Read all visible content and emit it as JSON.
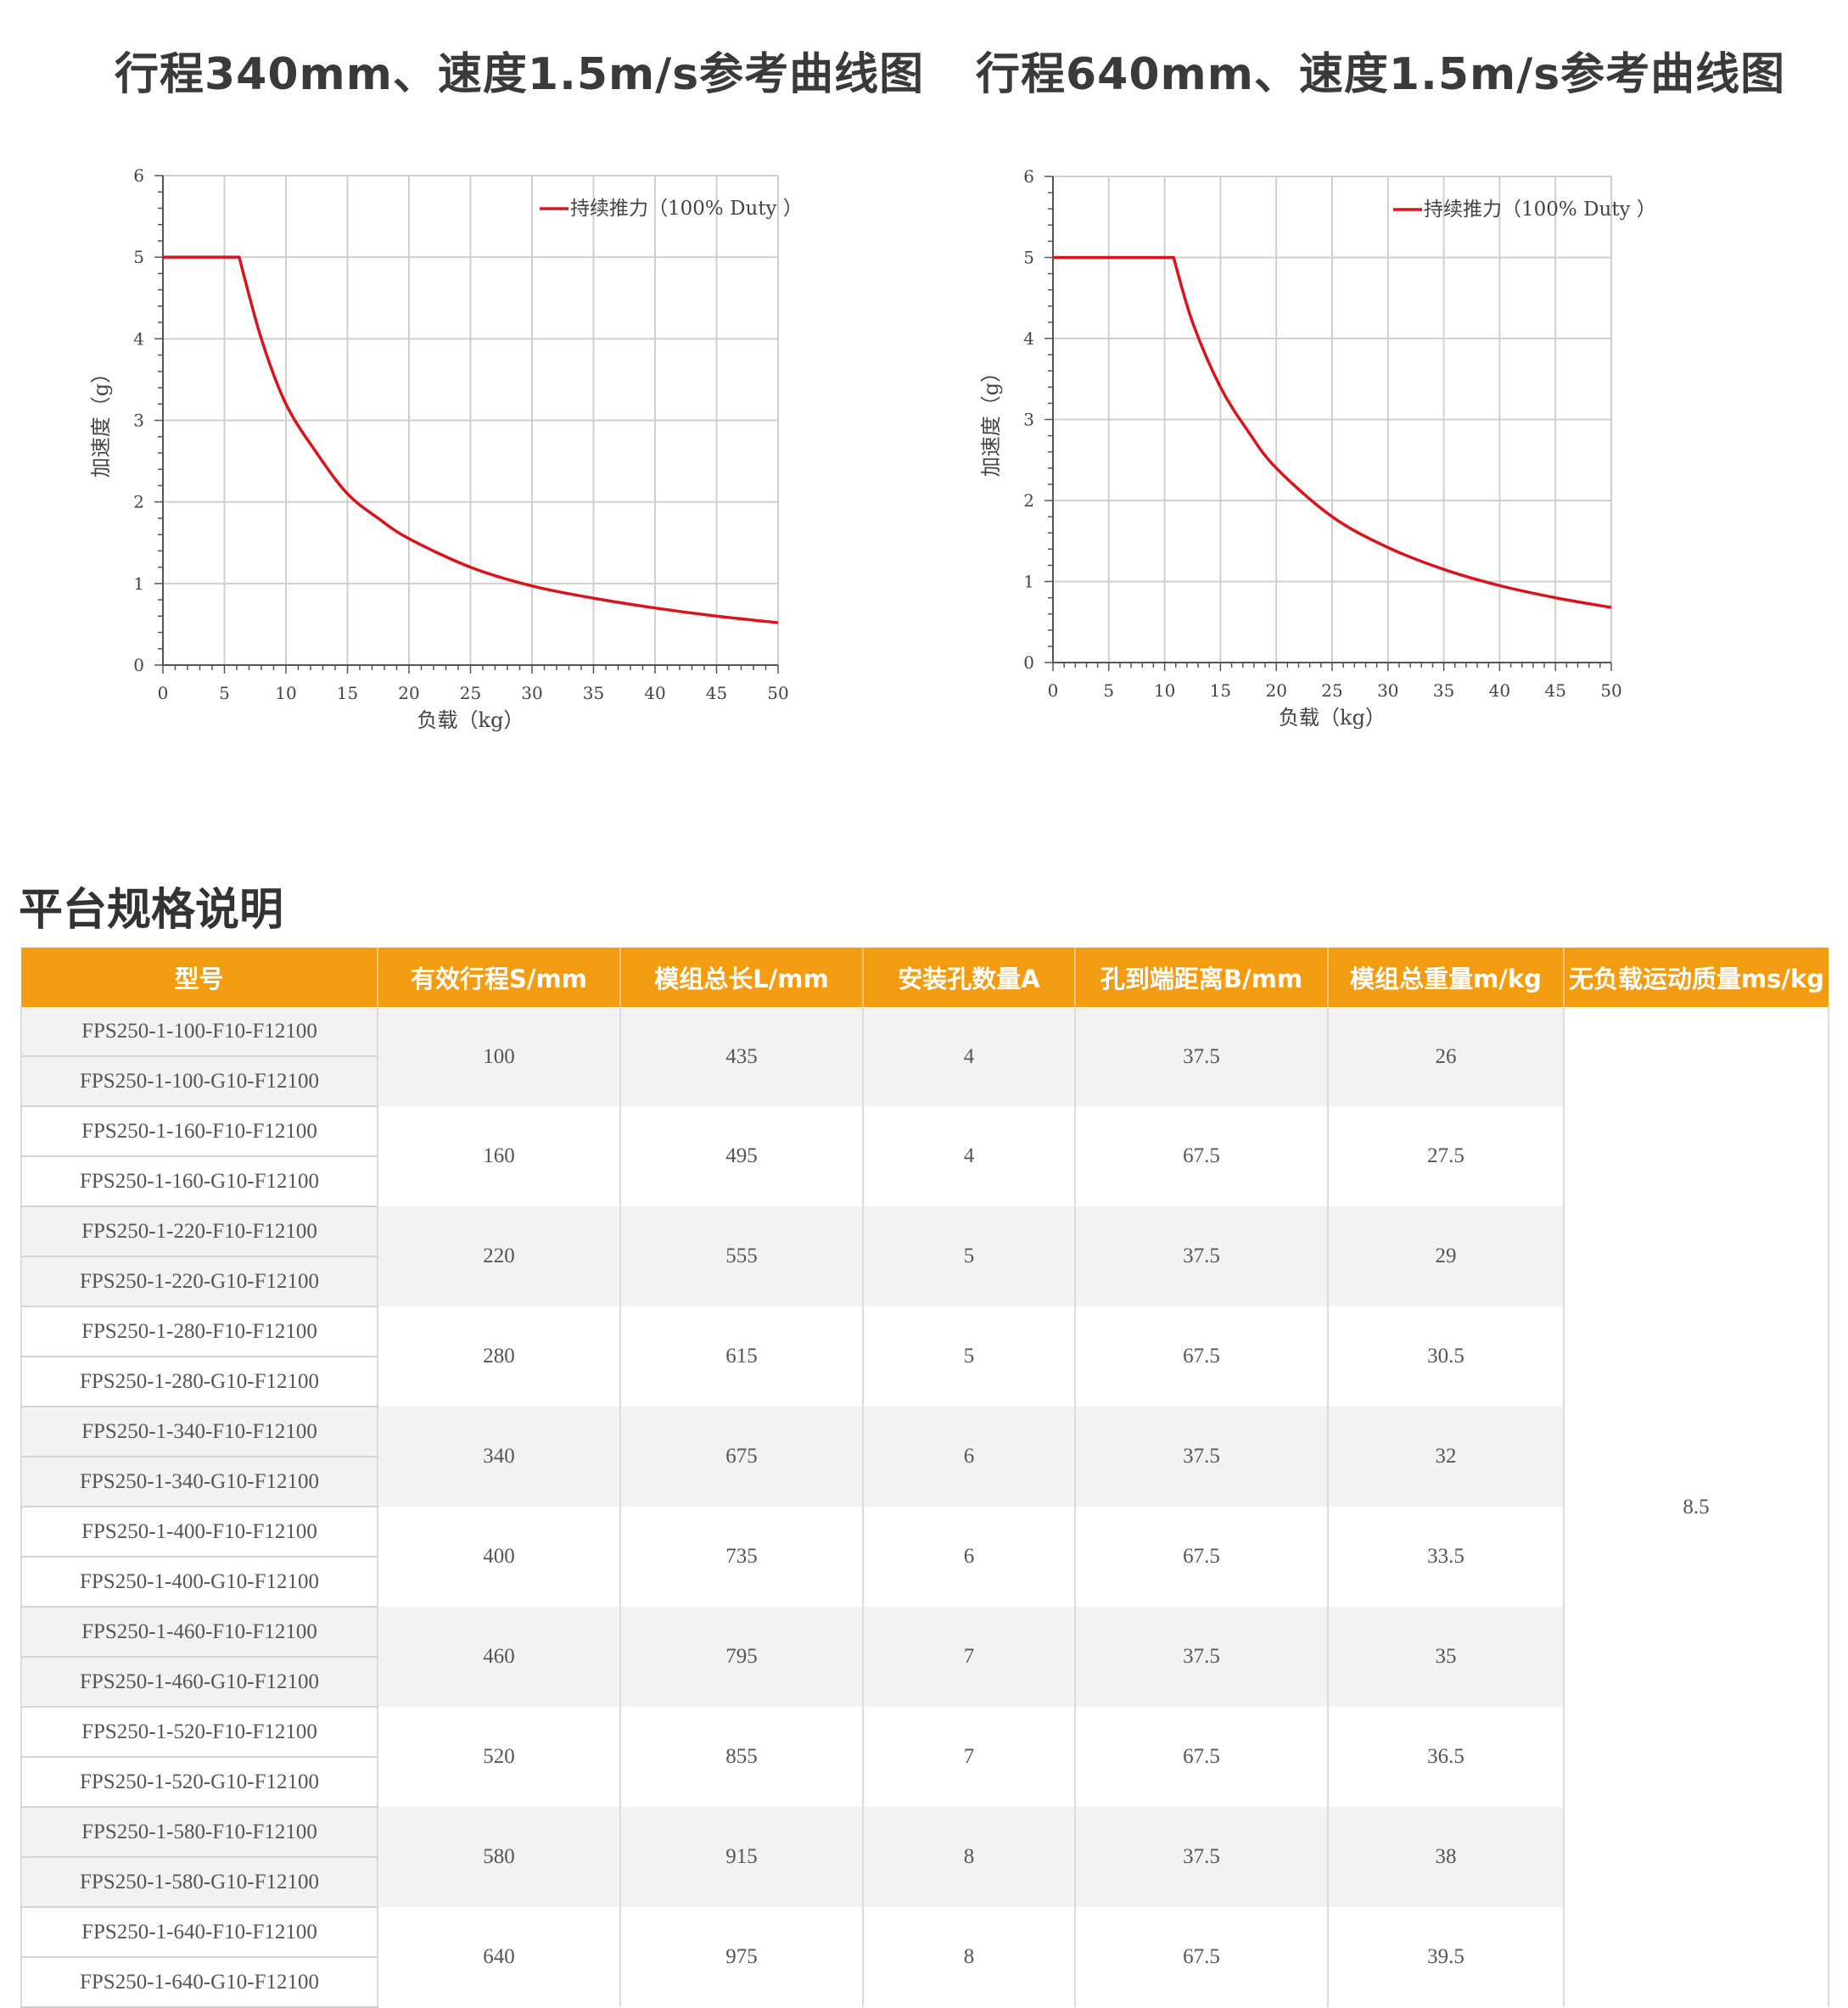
{
  "charts": [
    {
      "title": "行程340mm、速度1.5m/s参考曲线图",
      "legend": "持续推力（100% Duty ）",
      "xlabel": "负载（kg）",
      "ylabel": "加速度（g）",
      "x_ticks": [
        "0",
        "5",
        "10",
        "15",
        "20",
        "25",
        "30",
        "35",
        "40",
        "45",
        "50"
      ],
      "y_ticks": [
        "0",
        "1",
        "2",
        "3",
        "4",
        "5",
        "6"
      ]
    },
    {
      "title": "行程640mm、速度1.5m/s参考曲线图",
      "legend": "持续推力（100% Duty ）",
      "xlabel": "负载（kg）",
      "ylabel": "加速度（g）",
      "x_ticks": [
        "0",
        "5",
        "10",
        "15",
        "20",
        "25",
        "30",
        "35",
        "40",
        "45",
        "50"
      ],
      "y_ticks": [
        "0",
        "1",
        "2",
        "3",
        "4",
        "5",
        "6"
      ]
    }
  ],
  "chart_data": [
    {
      "type": "line",
      "title": "行程340mm、速度1.5m/s参考曲线图",
      "xlabel": "负载（kg）",
      "ylabel": "加速度（g）",
      "xlim": [
        0,
        50
      ],
      "ylim": [
        0,
        6
      ],
      "grid": true,
      "legend_position": "top-right",
      "color": "#d9151b",
      "series": [
        {
          "name": "持续推力（100% Duty ）",
          "x": [
            0,
            6.2,
            8,
            10,
            12.5,
            15,
            17.5,
            20,
            25,
            30,
            35,
            40,
            45,
            50
          ],
          "y": [
            5,
            5,
            4.0,
            3.2,
            2.6,
            2.1,
            1.8,
            1.55,
            1.2,
            0.97,
            0.82,
            0.7,
            0.6,
            0.52
          ]
        }
      ]
    },
    {
      "type": "line",
      "title": "行程640mm、速度1.5m/s参考曲线图",
      "xlabel": "负载（kg）",
      "ylabel": "加速度（g）",
      "xlim": [
        0,
        50
      ],
      "ylim": [
        0,
        6
      ],
      "grid": true,
      "legend_position": "top-right",
      "color": "#d9151b",
      "series": [
        {
          "name": "持续推力（100% Duty ）",
          "x": [
            0,
            10.8,
            12.5,
            15,
            17.5,
            20,
            25,
            30,
            35,
            40,
            45,
            50
          ],
          "y": [
            5,
            5,
            4.2,
            3.4,
            2.85,
            2.4,
            1.8,
            1.42,
            1.15,
            0.95,
            0.8,
            0.68
          ]
        }
      ]
    }
  ],
  "section_title": "平台规格说明",
  "table": {
    "headers": [
      "型号",
      "有效行程S/mm",
      "模组总长L/mm",
      "安装孔数量A",
      "孔到端距离B/mm",
      "模组总重量m/kg",
      "无负载运动质量ms/kg"
    ],
    "groups": [
      {
        "models": [
          "FPS250-1-100-F10-F12100",
          "FPS250-1-100-G10-F12100"
        ],
        "stroke": "100",
        "length": "435",
        "holes": "4",
        "distance": "37.5",
        "weight": "26"
      },
      {
        "models": [
          "FPS250-1-160-F10-F12100",
          "FPS250-1-160-G10-F12100"
        ],
        "stroke": "160",
        "length": "495",
        "holes": "4",
        "distance": "67.5",
        "weight": "27.5"
      },
      {
        "models": [
          "FPS250-1-220-F10-F12100",
          "FPS250-1-220-G10-F12100"
        ],
        "stroke": "220",
        "length": "555",
        "holes": "5",
        "distance": "37.5",
        "weight": "29"
      },
      {
        "models": [
          "FPS250-1-280-F10-F12100",
          "FPS250-1-280-G10-F12100"
        ],
        "stroke": "280",
        "length": "615",
        "holes": "5",
        "distance": "67.5",
        "weight": "30.5"
      },
      {
        "models": [
          "FPS250-1-340-F10-F12100",
          "FPS250-1-340-G10-F12100"
        ],
        "stroke": "340",
        "length": "675",
        "holes": "6",
        "distance": "37.5",
        "weight": "32"
      },
      {
        "models": [
          "FPS250-1-400-F10-F12100",
          "FPS250-1-400-G10-F12100"
        ],
        "stroke": "400",
        "length": "735",
        "holes": "6",
        "distance": "67.5",
        "weight": "33.5"
      },
      {
        "models": [
          "FPS250-1-460-F10-F12100",
          "FPS250-1-460-G10-F12100"
        ],
        "stroke": "460",
        "length": "795",
        "holes": "7",
        "distance": "37.5",
        "weight": "35"
      },
      {
        "models": [
          "FPS250-1-520-F10-F12100",
          "FPS250-1-520-G10-F12100"
        ],
        "stroke": "520",
        "length": "855",
        "holes": "7",
        "distance": "67.5",
        "weight": "36.5"
      },
      {
        "models": [
          "FPS250-1-580-F10-F12100",
          "FPS250-1-580-G10-F12100"
        ],
        "stroke": "580",
        "length": "915",
        "holes": "8",
        "distance": "37.5",
        "weight": "38"
      },
      {
        "models": [
          "FPS250-1-640-F10-F12100",
          "FPS250-1-640-G10-F12100"
        ],
        "stroke": "640",
        "length": "975",
        "holes": "8",
        "distance": "67.5",
        "weight": "39.5"
      }
    ],
    "moving_mass": "8.5"
  },
  "colors": {
    "header_bg": "#f39c12",
    "header_text": "#ffffff",
    "row_shade": "#f2f2f2",
    "curve": "#d9151b"
  }
}
